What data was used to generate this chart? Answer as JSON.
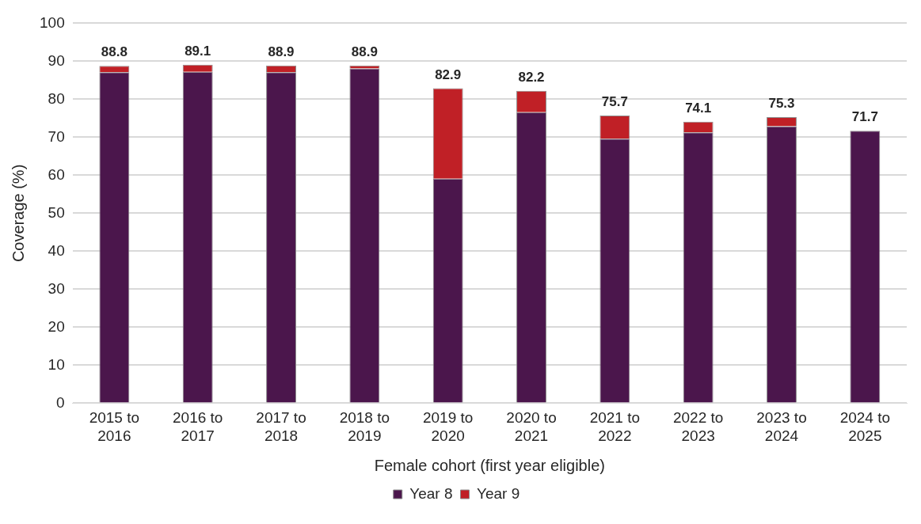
{
  "chart_data": {
    "type": "bar",
    "stacked": true,
    "xlabel": "Female cohort (first year eligible)",
    "ylabel": "Coverage (%)",
    "categories": [
      "2015 to 2016",
      "2016 to 2017",
      "2017 to 2018",
      "2018 to 2019",
      "2019 to 2020",
      "2020 to 2021",
      "2021 to 2022",
      "2022 to 2023",
      "2023 to 2024",
      "2024 to 2025"
    ],
    "series": [
      {
        "name": "Year 8",
        "color": "#4b164c",
        "values": [
          87.1,
          87.2,
          87.1,
          88.1,
          59.1,
          76.6,
          69.6,
          71.3,
          72.9,
          71.7
        ]
      },
      {
        "name": "Year 9",
        "color": "#c02026",
        "values": [
          1.7,
          1.9,
          1.8,
          0.8,
          23.8,
          5.6,
          6.1,
          2.8,
          2.4,
          0
        ]
      }
    ],
    "totals": [
      "88.8",
      "89.1",
      "88.9",
      "88.9",
      "82.9",
      "82.2",
      "75.7",
      "74.1",
      "75.3",
      "71.7"
    ],
    "ylim": [
      0,
      100
    ],
    "yticks": [
      0,
      10,
      20,
      30,
      40,
      50,
      60,
      70,
      80,
      90,
      100
    ],
    "grid": "y",
    "legend": "bottom"
  }
}
